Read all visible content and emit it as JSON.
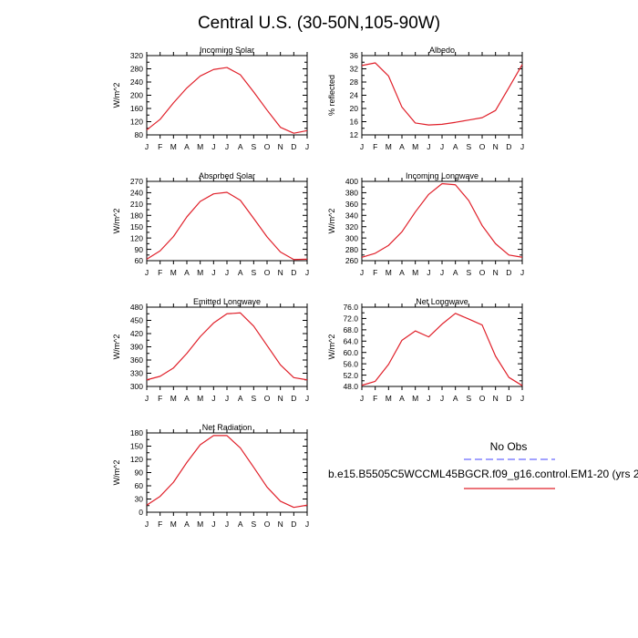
{
  "figure": {
    "title": "Central U.S. (30-50N,105-90W)"
  },
  "legend": {
    "entries": [
      {
        "label": "No Obs",
        "color": "#6b6bff",
        "style": "dashed"
      },
      {
        "label": "b.e15.B5505C5WCCML45BGCR.f09_g16.control.EM1-20 (yrs 2",
        "color": "#e0202a",
        "style": "solid"
      }
    ]
  },
  "chart_data": [
    {
      "type": "line",
      "title": "Incoming Solar",
      "ylabel": "W/m^2",
      "categories": [
        "J",
        "F",
        "M",
        "A",
        "M",
        "J",
        "J",
        "A",
        "S",
        "O",
        "N",
        "D",
        "J"
      ],
      "ylim": [
        80,
        320
      ],
      "ytick_step": 40,
      "ytick_decimals": 0,
      "series": [
        {
          "color": "#e0202a",
          "values": [
            95,
            127,
            177,
            222,
            258,
            278,
            284,
            262,
            210,
            155,
            103,
            85,
            93
          ]
        }
      ]
    },
    {
      "type": "line",
      "title": "Albedo",
      "ylabel": "% reflected",
      "categories": [
        "J",
        "F",
        "M",
        "A",
        "M",
        "J",
        "J",
        "A",
        "S",
        "O",
        "N",
        "D",
        "J"
      ],
      "ylim": [
        12,
        36
      ],
      "ytick_step": 4,
      "ytick_decimals": 0,
      "series": [
        {
          "color": "#e0202a",
          "values": [
            33.0,
            33.8,
            29.8,
            20.4,
            15.6,
            15.0,
            15.2,
            15.8,
            16.5,
            17.2,
            19.4,
            26.3,
            33.3
          ]
        }
      ]
    },
    {
      "type": "line",
      "title": "Absorbed Solar",
      "ylabel": "W/m^2",
      "categories": [
        "J",
        "F",
        "M",
        "A",
        "M",
        "J",
        "J",
        "A",
        "S",
        "O",
        "N",
        "D",
        "J"
      ],
      "ylim": [
        60,
        270
      ],
      "ytick_step": 30,
      "ytick_decimals": 0,
      "series": [
        {
          "color": "#e0202a",
          "values": [
            64,
            86,
            124,
            176,
            217,
            237,
            241,
            220,
            172,
            123,
            83,
            63,
            64
          ]
        }
      ]
    },
    {
      "type": "line",
      "title": "Incoming Longwave",
      "ylabel": "W/m^2",
      "categories": [
        "J",
        "F",
        "M",
        "A",
        "M",
        "J",
        "J",
        "A",
        "S",
        "O",
        "N",
        "D",
        "J"
      ],
      "ylim": [
        260,
        400
      ],
      "ytick_step": 20,
      "ytick_decimals": 0,
      "series": [
        {
          "color": "#e0202a",
          "values": [
            266,
            273,
            287,
            311,
            346,
            377,
            396,
            394,
            366,
            322,
            290,
            270,
            266
          ]
        }
      ]
    },
    {
      "type": "line",
      "title": "Emitted Longwave",
      "ylabel": "W/m^2",
      "categories": [
        "J",
        "F",
        "M",
        "A",
        "M",
        "J",
        "J",
        "A",
        "S",
        "O",
        "N",
        "D",
        "J"
      ],
      "ylim": [
        300,
        480
      ],
      "ytick_step": 30,
      "ytick_decimals": 0,
      "series": [
        {
          "color": "#e0202a",
          "values": [
            315,
            323,
            342,
            375,
            413,
            444,
            465,
            467,
            437,
            393,
            349,
            320,
            315
          ]
        }
      ]
    },
    {
      "type": "line",
      "title": "Net Longwave",
      "ylabel": "W/m^2",
      "categories": [
        "J",
        "F",
        "M",
        "A",
        "M",
        "J",
        "J",
        "A",
        "S",
        "O",
        "N",
        "D",
        "J"
      ],
      "ylim": [
        48,
        76
      ],
      "ytick_step": 4,
      "ytick_decimals": 1,
      "series": [
        {
          "color": "#e0202a",
          "values": [
            48.4,
            49.8,
            55.8,
            64.3,
            67.6,
            65.5,
            70.0,
            73.8,
            71.8,
            69.7,
            58.7,
            51.2,
            48.3
          ]
        }
      ]
    },
    {
      "type": "line",
      "title": "Net Radiation",
      "ylabel": "W/m^2",
      "categories": [
        "J",
        "F",
        "M",
        "A",
        "M",
        "J",
        "J",
        "A",
        "S",
        "O",
        "N",
        "D",
        "J"
      ],
      "ylim": [
        0,
        180
      ],
      "ytick_step": 30,
      "ytick_decimals": 0,
      "series": [
        {
          "color": "#e0202a",
          "values": [
            16,
            36,
            68,
            113,
            153,
            174,
            174,
            146,
            102,
            57,
            25,
            11,
            16
          ]
        }
      ]
    }
  ]
}
